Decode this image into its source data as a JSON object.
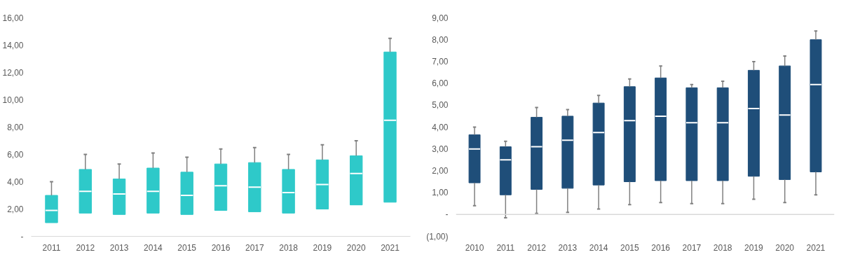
{
  "chart_data": [
    {
      "type": "box",
      "categories": [
        "2011",
        "2012",
        "2013",
        "2014",
        "2015",
        "2016",
        "2017",
        "2018",
        "2019",
        "2020",
        "2021"
      ],
      "series": [
        {
          "color": "#2ec9c9",
          "boxes": [
            {
              "low": 1.0,
              "q1": 1.0,
              "median": 1.9,
              "q3": 3.0,
              "high": 4.0
            },
            {
              "low": 1.7,
              "q1": 1.7,
              "median": 3.3,
              "q3": 4.9,
              "high": 6.0
            },
            {
              "low": 1.6,
              "q1": 1.6,
              "median": 3.1,
              "q3": 4.2,
              "high": 5.3
            },
            {
              "low": 1.7,
              "q1": 1.7,
              "median": 3.3,
              "q3": 5.0,
              "high": 6.1
            },
            {
              "low": 1.6,
              "q1": 1.6,
              "median": 3.0,
              "q3": 4.7,
              "high": 5.8
            },
            {
              "low": 1.9,
              "q1": 1.9,
              "median": 3.7,
              "q3": 5.3,
              "high": 6.4
            },
            {
              "low": 1.8,
              "q1": 1.8,
              "median": 3.6,
              "q3": 5.4,
              "high": 6.5
            },
            {
              "low": 1.7,
              "q1": 1.7,
              "median": 3.2,
              "q3": 4.9,
              "high": 6.0
            },
            {
              "low": 2.0,
              "q1": 2.0,
              "median": 3.8,
              "q3": 5.6,
              "high": 6.7
            },
            {
              "low": 2.3,
              "q1": 2.3,
              "median": 4.6,
              "q3": 5.9,
              "high": 7.0
            },
            {
              "low": 2.5,
              "q1": 2.5,
              "median": 8.5,
              "q3": 13.5,
              "high": 14.5
            }
          ]
        }
      ],
      "ylim": [
        0,
        16
      ],
      "yticks": [
        {
          "value": 0,
          "label": "-"
        },
        {
          "value": 2,
          "label": "2,00"
        },
        {
          "value": 4,
          "label": "4,00"
        },
        {
          "value": 6,
          "label": "6,00"
        },
        {
          "value": 8,
          "label": "8,00"
        },
        {
          "value": 10,
          "label": "10,00"
        },
        {
          "value": 12,
          "label": "12,00"
        },
        {
          "value": 14,
          "label": "14,00"
        },
        {
          "value": 16,
          "label": "16,00"
        }
      ],
      "grid": false
    },
    {
      "type": "box",
      "categories": [
        "2010",
        "2011",
        "2012",
        "2013",
        "2014",
        "2015",
        "2016",
        "2017",
        "2018",
        "2019",
        "2020",
        "2021"
      ],
      "series": [
        {
          "color": "#1f4e79",
          "boxes": [
            {
              "low": 0.4,
              "q1": 1.45,
              "median": 3.0,
              "q3": 3.65,
              "high": 4.0
            },
            {
              "low": -0.15,
              "q1": 0.9,
              "median": 2.5,
              "q3": 3.1,
              "high": 3.35
            },
            {
              "low": 0.05,
              "q1": 1.15,
              "median": 3.1,
              "q3": 4.45,
              "high": 4.9
            },
            {
              "low": 0.1,
              "q1": 1.2,
              "median": 3.4,
              "q3": 4.5,
              "high": 4.8
            },
            {
              "low": 0.25,
              "q1": 1.35,
              "median": 3.75,
              "q3": 5.1,
              "high": 5.45
            },
            {
              "low": 0.45,
              "q1": 1.5,
              "median": 4.3,
              "q3": 5.85,
              "high": 6.2
            },
            {
              "low": 0.55,
              "q1": 1.55,
              "median": 4.5,
              "q3": 6.25,
              "high": 6.8
            },
            {
              "low": 0.5,
              "q1": 1.55,
              "median": 4.2,
              "q3": 5.8,
              "high": 5.95
            },
            {
              "low": 0.5,
              "q1": 1.55,
              "median": 4.2,
              "q3": 5.8,
              "high": 6.1
            },
            {
              "low": 0.7,
              "q1": 1.75,
              "median": 4.85,
              "q3": 6.6,
              "high": 7.0
            },
            {
              "low": 0.55,
              "q1": 1.6,
              "median": 4.55,
              "q3": 6.8,
              "high": 7.25
            },
            {
              "low": 0.9,
              "q1": 1.95,
              "median": 5.95,
              "q3": 8.0,
              "high": 8.4
            }
          ]
        }
      ],
      "ylim": [
        -1,
        9
      ],
      "yticks": [
        {
          "value": -1,
          "label": "(1,00)"
        },
        {
          "value": 0,
          "label": "-"
        },
        {
          "value": 1,
          "label": "1,00"
        },
        {
          "value": 2,
          "label": "2,00"
        },
        {
          "value": 3,
          "label": "3,00"
        },
        {
          "value": 4,
          "label": "4,00"
        },
        {
          "value": 5,
          "label": "5,00"
        },
        {
          "value": 6,
          "label": "6,00"
        },
        {
          "value": 7,
          "label": "7,00"
        },
        {
          "value": 8,
          "label": "8,00"
        },
        {
          "value": 9,
          "label": "9,00"
        }
      ],
      "ref_lines": [
        {
          "axis": "y",
          "value": 0,
          "color": "#d9d9d9"
        }
      ],
      "grid": false
    }
  ]
}
